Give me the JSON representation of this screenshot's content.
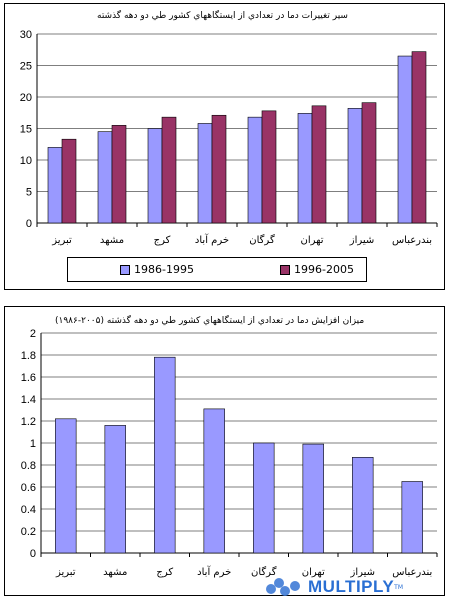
{
  "colors": {
    "series_a": "#9999ff",
    "series_b": "#993366",
    "axis": "#000000"
  },
  "watermark": {
    "text": "MULTIPLY",
    "mark": "TM"
  },
  "chart_data": [
    {
      "type": "bar",
      "title": "سير تغييرات دما در تعدادي از ايستگاههاي كشور طي دو دهه گذشته",
      "categories": [
        "تبريز",
        "مشهد",
        "كرج",
        "خرم آباد",
        "گرگان",
        "تهران",
        "شيراز",
        "بندرعباس"
      ],
      "series": [
        {
          "name": "1986-1995",
          "values": [
            12.0,
            14.5,
            15.0,
            15.8,
            16.8,
            17.4,
            18.2,
            26.5
          ]
        },
        {
          "name": "1996-2005",
          "values": [
            13.3,
            15.5,
            16.8,
            17.1,
            17.8,
            18.6,
            19.1,
            27.2
          ]
        }
      ],
      "xlabel": "",
      "ylabel": "",
      "ylim": [
        0,
        30
      ],
      "yticks": [
        "0",
        "5",
        "10",
        "15",
        "20",
        "25",
        "30"
      ],
      "grid": true,
      "legend": "bottom"
    },
    {
      "type": "bar",
      "title": "ميزان افزايش دما در تعدادي از ايستگاههاي كشور طي دو دهه گذشته (۲۰۰۵-۱۹۸۶)",
      "categories": [
        "تبريز",
        "مشهد",
        "كرج",
        "خرم آباد",
        "گرگان",
        "تهران",
        "شيراز",
        "بندرعباس"
      ],
      "values": [
        1.22,
        1.16,
        1.78,
        1.31,
        1.0,
        0.99,
        0.87,
        0.65
      ],
      "xlabel": "",
      "ylabel": "",
      "ylim": [
        0,
        2
      ],
      "yticks": [
        "0",
        "0.2",
        "0.4",
        "0.6",
        "0.8",
        "1",
        "1.2",
        "1.4",
        "1.6",
        "1.8",
        "2"
      ],
      "grid": true,
      "legend": "none"
    }
  ]
}
